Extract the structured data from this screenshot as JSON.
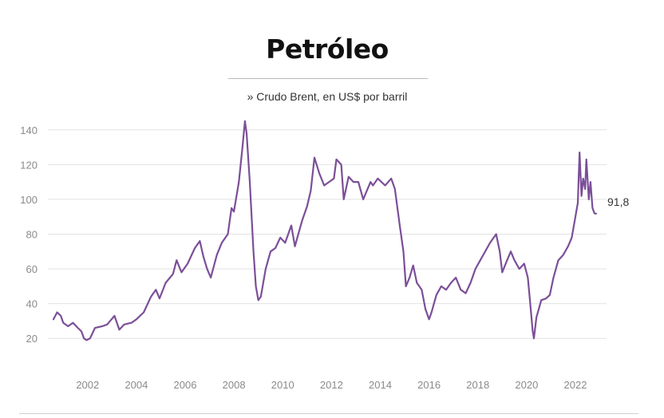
{
  "chart_data": {
    "type": "line",
    "title": "Petróleo",
    "subtitle": "» Crudo Brent, en US$ por barril",
    "xlabel": "",
    "ylabel": "",
    "ylim": [
      10,
      150
    ],
    "xlim": [
      2000.6,
      2022.95
    ],
    "yticks": [
      20,
      40,
      60,
      80,
      100,
      120,
      140
    ],
    "xticks": [
      2002,
      2004,
      2006,
      2008,
      2010,
      2012,
      2014,
      2016,
      2018,
      2020,
      2022
    ],
    "grid": true,
    "line_color": "#7b4f98",
    "end_label": "91,8",
    "series": [
      {
        "x": [
          2000.6,
          2000.75,
          2000.9,
          2001.0,
          2001.2,
          2001.4,
          2001.6,
          2001.75,
          2001.85,
          2001.95,
          2002.1,
          2002.3,
          2002.6,
          2002.8,
          2003.1,
          2003.3,
          2003.5,
          2003.8,
          2004.0,
          2004.3,
          2004.6,
          2004.8,
          2004.95,
          2005.2,
          2005.5,
          2005.65,
          2005.85,
          2006.1,
          2006.4,
          2006.6,
          2006.75,
          2006.9,
          2007.05,
          2007.3,
          2007.5,
          2007.75,
          2007.9,
          2008.0,
          2008.2,
          2008.35,
          2008.45,
          2008.52,
          2008.65,
          2008.8,
          2008.9,
          2009.0,
          2009.1,
          2009.3,
          2009.5,
          2009.7,
          2009.9,
          2010.1,
          2010.35,
          2010.5,
          2010.8,
          2011.0,
          2011.15,
          2011.3,
          2011.5,
          2011.7,
          2011.9,
          2012.1,
          2012.2,
          2012.4,
          2012.5,
          2012.7,
          2012.9,
          2013.1,
          2013.3,
          2013.6,
          2013.7,
          2013.9,
          2014.2,
          2014.45,
          2014.6,
          2014.8,
          2014.95,
          2015.05,
          2015.2,
          2015.35,
          2015.5,
          2015.7,
          2015.85,
          2016.0,
          2016.1,
          2016.3,
          2016.5,
          2016.7,
          2016.9,
          2017.1,
          2017.3,
          2017.5,
          2017.7,
          2017.9,
          2018.1,
          2018.3,
          2018.5,
          2018.75,
          2018.9,
          2019.0,
          2019.2,
          2019.35,
          2019.5,
          2019.7,
          2019.9,
          2020.05,
          2020.15,
          2020.25,
          2020.3,
          2020.4,
          2020.6,
          2020.8,
          2020.95,
          2021.1,
          2021.3,
          2021.5,
          2021.7,
          2021.85,
          2022.0,
          2022.1,
          2022.17,
          2022.25,
          2022.32,
          2022.4,
          2022.45,
          2022.55,
          2022.62,
          2022.7,
          2022.78,
          2022.85
        ],
        "y": [
          31,
          35,
          33,
          29,
          27,
          29,
          26,
          24,
          20,
          19,
          20,
          26,
          27,
          28,
          33,
          25,
          28,
          29,
          31,
          35,
          44,
          48,
          43,
          52,
          57,
          65,
          58,
          63,
          72,
          76,
          67,
          60,
          55,
          68,
          75,
          80,
          95,
          93,
          110,
          130,
          145,
          138,
          110,
          70,
          50,
          42,
          44,
          60,
          70,
          72,
          78,
          75,
          85,
          73,
          88,
          96,
          105,
          124,
          115,
          108,
          110,
          112,
          123,
          120,
          100,
          113,
          110,
          110,
          100,
          110,
          108,
          112,
          108,
          112,
          106,
          85,
          70,
          50,
          55,
          62,
          52,
          48,
          37,
          31,
          35,
          45,
          50,
          48,
          52,
          55,
          48,
          46,
          52,
          60,
          65,
          70,
          75,
          80,
          70,
          58,
          65,
          70,
          65,
          60,
          63,
          55,
          40,
          24,
          20,
          32,
          42,
          43,
          45,
          55,
          65,
          68,
          73,
          78,
          90,
          98,
          127,
          102,
          112,
          106,
          123,
          100,
          110,
          95,
          92,
          91.8
        ]
      }
    ]
  }
}
